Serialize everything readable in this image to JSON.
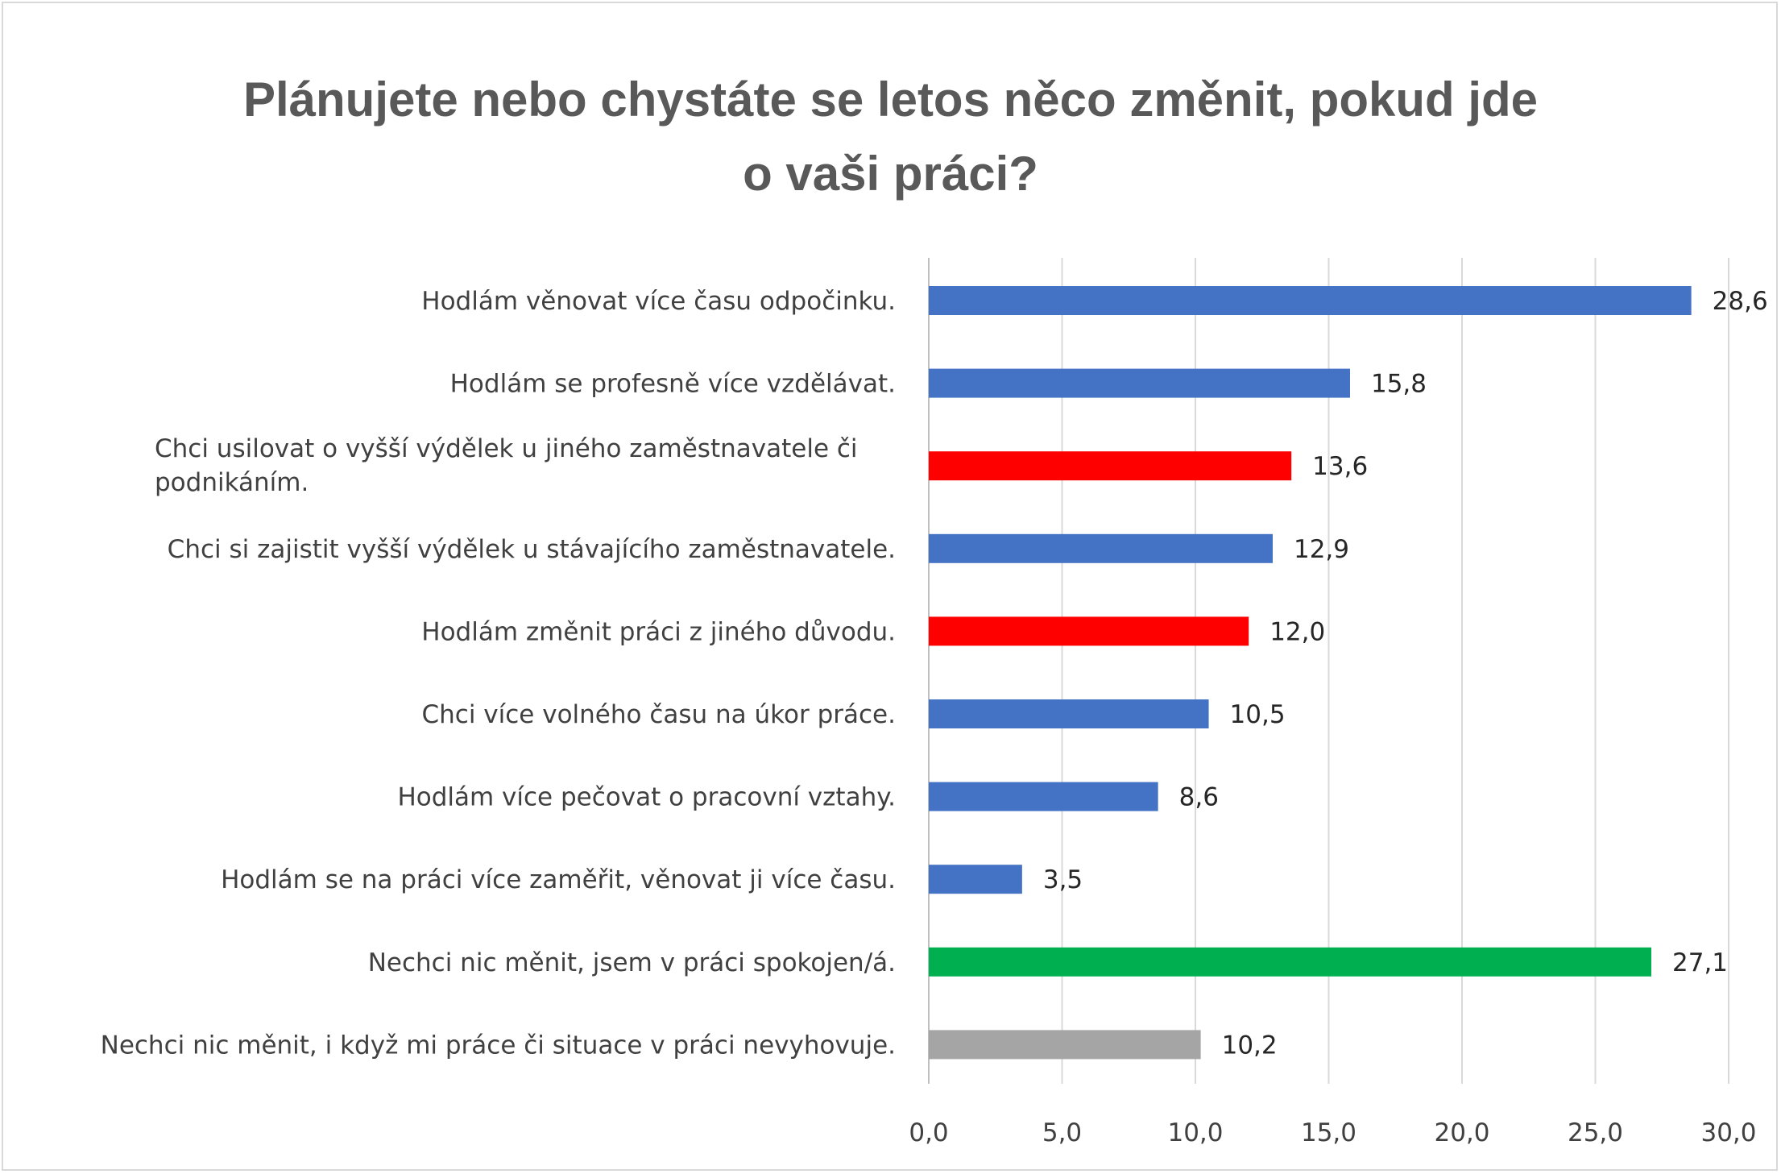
{
  "chart_data": {
    "type": "bar",
    "orientation": "horizontal",
    "title_lines": [
      "Plánujete nebo chystáte se letos něco změnit, pokud jde",
      "o vaši práci?"
    ],
    "categories": [
      "Hodlám věnovat více času odpočinku.",
      "Hodlám se profesně více vzdělávat.",
      "Chci usilovat o vyšší výdělek u jiného zaměstnavatele či podnikáním.",
      "Chci si zajistit vyšší výdělek u stávajícího zaměstnavatele.",
      "Hodlám změnit práci z jiného důvodu.",
      "Chci více volného času na úkor práce.",
      "Hodlám více pečovat o pracovní vztahy.",
      "Hodlám se na práci více zaměřit, věnovat ji více času.",
      "Nechci nic měnit, jsem v práci spokojen/á.",
      "Nechci nic měnit, i když mi práce či situace v práci nevyhovuje."
    ],
    "category_lines": [
      [
        "Hodlám věnovat více času odpočinku."
      ],
      [
        "Hodlám se profesně více vzdělávat."
      ],
      [
        "Chci usilovat o vyšší výdělek u jiného zaměstnavatele či",
        "podnikáním."
      ],
      [
        "Chci si zajistit vyšší výdělek u stávajícího zaměstnavatele."
      ],
      [
        "Hodlám změnit práci z jiného důvodu."
      ],
      [
        "Chci více volného času na úkor práce."
      ],
      [
        "Hodlám více pečovat o pracovní vztahy."
      ],
      [
        "Hodlám se na práci více zaměřit, věnovat ji více času."
      ],
      [
        "Nechci nic měnit, jsem v práci spokojen/á."
      ],
      [
        "Nechci nic měnit, i když mi práce či situace v práci nevyhovuje."
      ]
    ],
    "values": [
      28.6,
      15.8,
      13.6,
      12.9,
      12.0,
      10.5,
      8.6,
      3.5,
      27.1,
      10.2
    ],
    "value_labels": [
      "28,6",
      "15,8",
      "13,6",
      "12,9",
      "12,0",
      "10,5",
      "8,6",
      "3,5",
      "27,1",
      "10,2"
    ],
    "bar_colors": [
      "#4472c4",
      "#4472c4",
      "#ff0000",
      "#4472c4",
      "#ff0000",
      "#4472c4",
      "#4472c4",
      "#4472c4",
      "#00b050",
      "#a5a5a5"
    ],
    "xlim": [
      0,
      30
    ],
    "xticks": [
      0,
      5,
      10,
      15,
      20,
      25,
      30
    ],
    "xtick_labels": [
      "0,0",
      "5,0",
      "10,0",
      "15,0",
      "20,0",
      "25,0",
      "30,0"
    ],
    "grid": true,
    "gridline_color": "#d9d9d9",
    "xlabel": "",
    "ylabel": ""
  }
}
